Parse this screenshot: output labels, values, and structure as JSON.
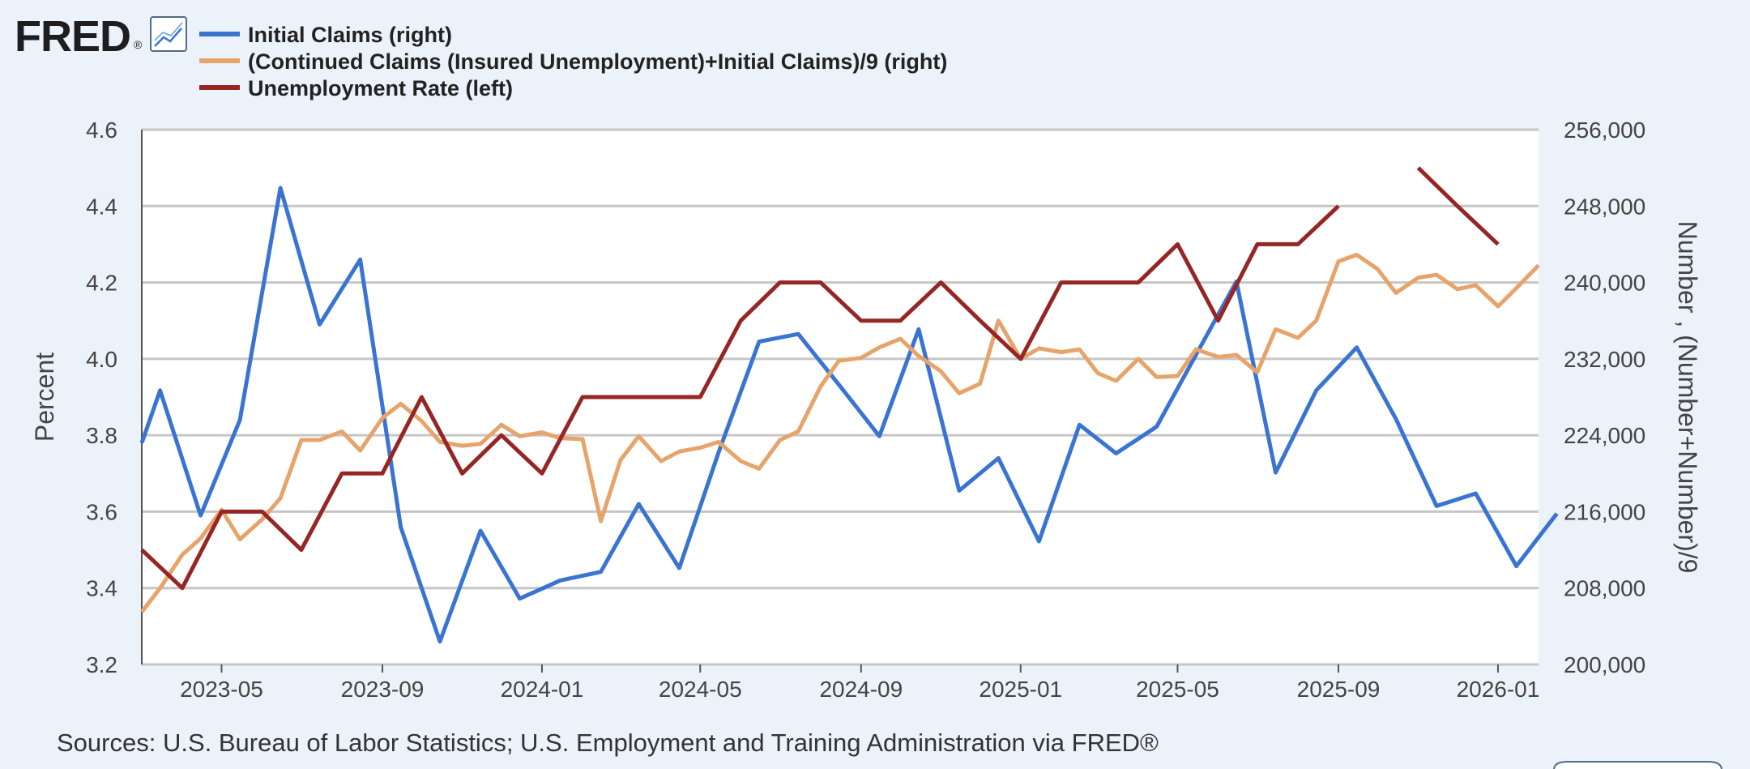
{
  "logo": {
    "text": "FRED",
    "reg": "®"
  },
  "chart_data": {
    "type": "line",
    "title": "",
    "ylabel_left": "Percent",
    "ylabel_right": "Number , (Number+Number)/9",
    "ylim_left": [
      3.2,
      4.6
    ],
    "ylim_right": [
      200000,
      256000
    ],
    "xlim": [
      "2023-03-01",
      "2026-02-01"
    ],
    "x_ticks": [
      "2023-05",
      "2023-09",
      "2024-01",
      "2024-05",
      "2024-09",
      "2025-01",
      "2025-05",
      "2025-09",
      "2026-01"
    ],
    "y_ticks_left": [
      "3.2",
      "3.4",
      "3.6",
      "3.8",
      "4.0",
      "4.2",
      "4.4",
      "4.6"
    ],
    "y_ticks_right": [
      "200,000",
      "208,000",
      "216,000",
      "224,000",
      "232,000",
      "240,000",
      "248,000",
      "256,000"
    ],
    "grid": true,
    "legend_position": "top-left",
    "source": "Sources: U.S. Bureau of Labor Statistics; U.S. Employment and Training Administration via FRED®",
    "series": [
      {
        "name": "Initial Claims (right)",
        "axis": "right",
        "color": "#3a74d3",
        "points": [
          [
            "2023-03-01",
            223200
          ],
          [
            "2023-03-15",
            228700
          ],
          [
            "2023-04-15",
            215600
          ],
          [
            "2023-05-15",
            225600
          ],
          [
            "2023-06-15",
            249900
          ],
          [
            "2023-07-15",
            235600
          ],
          [
            "2023-08-15",
            242400
          ],
          [
            "2023-09-15",
            214400
          ],
          [
            "2023-10-15",
            202400
          ],
          [
            "2023-11-15",
            214000
          ],
          [
            "2023-12-15",
            206900
          ],
          [
            "2024-01-15",
            208800
          ],
          [
            "2024-02-15",
            209700
          ],
          [
            "2024-03-15",
            216800
          ],
          [
            "2024-04-15",
            210100
          ],
          [
            "2024-05-15",
            222200
          ],
          [
            "2024-06-15",
            233800
          ],
          [
            "2024-07-15",
            234600
          ],
          [
            "2024-08-15",
            229300
          ],
          [
            "2024-09-15",
            223900
          ],
          [
            "2024-10-15",
            235100
          ],
          [
            "2024-11-15",
            218200
          ],
          [
            "2024-12-15",
            221600
          ],
          [
            "2025-01-15",
            212900
          ],
          [
            "2025-02-15",
            225100
          ],
          [
            "2025-03-15",
            222100
          ],
          [
            "2025-04-15",
            224900
          ],
          [
            "2025-05-15",
            232400
          ],
          [
            "2025-06-15",
            240100
          ],
          [
            "2025-07-15",
            220100
          ],
          [
            "2025-08-15",
            228700
          ],
          [
            "2025-09-15",
            233200
          ],
          [
            "2025-10-15",
            225700
          ],
          [
            "2025-11-15",
            216600
          ],
          [
            "2025-12-15",
            217900
          ],
          [
            "2026-01-15",
            210300
          ],
          [
            "2026-02-15",
            215800
          ]
        ]
      },
      {
        "name": "(Continued Claims (Insured Unemployment)+Initial Claims)/9 (right)",
        "axis": "right",
        "color": "#e7a46a",
        "points": [
          [
            "2023-03-01",
            205500
          ],
          [
            "2023-03-15",
            208000
          ],
          [
            "2023-04-01",
            211500
          ],
          [
            "2023-04-15",
            213200
          ],
          [
            "2023-05-01",
            216200
          ],
          [
            "2023-05-15",
            213100
          ],
          [
            "2023-06-01",
            215200
          ],
          [
            "2023-06-15",
            217400
          ],
          [
            "2023-07-01",
            223500
          ],
          [
            "2023-07-15",
            223500
          ],
          [
            "2023-08-01",
            224400
          ],
          [
            "2023-08-15",
            222400
          ],
          [
            "2023-09-01",
            225800
          ],
          [
            "2023-09-15",
            227300
          ],
          [
            "2023-10-01",
            225500
          ],
          [
            "2023-10-15",
            223300
          ],
          [
            "2023-11-01",
            222900
          ],
          [
            "2023-11-15",
            223100
          ],
          [
            "2023-12-01",
            225100
          ],
          [
            "2023-12-15",
            223900
          ],
          [
            "2024-01-01",
            224300
          ],
          [
            "2024-01-15",
            223700
          ],
          [
            "2024-02-01",
            223600
          ],
          [
            "2024-02-15",
            215000
          ],
          [
            "2024-03-01",
            221400
          ],
          [
            "2024-03-15",
            223900
          ],
          [
            "2024-04-01",
            221300
          ],
          [
            "2024-04-15",
            222300
          ],
          [
            "2024-05-01",
            222700
          ],
          [
            "2024-05-15",
            223300
          ],
          [
            "2024-06-01",
            221300
          ],
          [
            "2024-06-15",
            220500
          ],
          [
            "2024-07-01",
            223500
          ],
          [
            "2024-07-15",
            224400
          ],
          [
            "2024-08-01",
            229100
          ],
          [
            "2024-08-15",
            231800
          ],
          [
            "2024-09-01",
            232100
          ],
          [
            "2024-09-15",
            233200
          ],
          [
            "2024-10-01",
            234100
          ],
          [
            "2024-10-15",
            232300
          ],
          [
            "2024-11-01",
            230700
          ],
          [
            "2024-11-15",
            228400
          ],
          [
            "2024-12-01",
            229400
          ],
          [
            "2024-12-15",
            236000
          ],
          [
            "2025-01-01",
            232000
          ],
          [
            "2025-01-15",
            233100
          ],
          [
            "2025-02-01",
            232700
          ],
          [
            "2025-02-15",
            233000
          ],
          [
            "2025-03-01",
            230500
          ],
          [
            "2025-03-15",
            229700
          ],
          [
            "2025-04-01",
            232000
          ],
          [
            "2025-04-15",
            230100
          ],
          [
            "2025-05-01",
            230200
          ],
          [
            "2025-05-15",
            233000
          ],
          [
            "2025-06-01",
            232200
          ],
          [
            "2025-06-15",
            232400
          ],
          [
            "2025-07-01",
            230600
          ],
          [
            "2025-07-15",
            235100
          ],
          [
            "2025-08-01",
            234200
          ],
          [
            "2025-08-15",
            236000
          ],
          [
            "2025-09-01",
            242200
          ],
          [
            "2025-09-15",
            242900
          ],
          [
            "2025-10-01",
            241400
          ],
          [
            "2025-10-15",
            238900
          ],
          [
            "2025-11-01",
            240500
          ],
          [
            "2025-11-15",
            240800
          ],
          [
            "2025-12-01",
            239300
          ],
          [
            "2025-12-15",
            239700
          ],
          [
            "2026-01-01",
            237500
          ],
          [
            "2026-01-15",
            239400
          ],
          [
            "2026-02-01",
            241800
          ]
        ]
      },
      {
        "name": "Unemployment Rate (left)",
        "axis": "left",
        "color": "#962624",
        "points": [
          [
            "2023-03-01",
            3.5
          ],
          [
            "2023-04-01",
            3.4
          ],
          [
            "2023-05-01",
            3.6
          ],
          [
            "2023-06-01",
            3.6
          ],
          [
            "2023-07-01",
            3.5
          ],
          [
            "2023-08-01",
            3.7
          ],
          [
            "2023-09-01",
            3.7
          ],
          [
            "2023-10-01",
            3.9
          ],
          [
            "2023-11-01",
            3.7
          ],
          [
            "2023-12-01",
            3.8
          ],
          [
            "2024-01-01",
            3.7
          ],
          [
            "2024-02-01",
            3.9
          ],
          [
            "2024-03-01",
            3.9
          ],
          [
            "2024-04-01",
            3.9
          ],
          [
            "2024-05-01",
            3.9
          ],
          [
            "2024-06-01",
            4.1
          ],
          [
            "2024-07-01",
            4.2
          ],
          [
            "2024-08-01",
            4.2
          ],
          [
            "2024-09-01",
            4.1
          ],
          [
            "2024-10-01",
            4.1
          ],
          [
            "2024-11-01",
            4.2
          ],
          [
            "2024-12-01",
            4.1
          ],
          [
            "2025-01-01",
            4.0
          ],
          [
            "2025-02-01",
            4.2
          ],
          [
            "2025-03-01",
            4.2
          ],
          [
            "2025-04-01",
            4.2
          ],
          [
            "2025-05-01",
            4.3
          ],
          [
            "2025-06-01",
            4.1
          ],
          [
            "2025-07-01",
            4.3
          ],
          [
            "2025-08-01",
            4.3
          ],
          [
            "2025-09-01",
            4.4
          ],
          null,
          [
            "2025-11-01",
            4.5
          ],
          [
            "2025-12-01",
            4.4
          ],
          [
            "2026-01-01",
            4.3
          ]
        ]
      }
    ]
  }
}
